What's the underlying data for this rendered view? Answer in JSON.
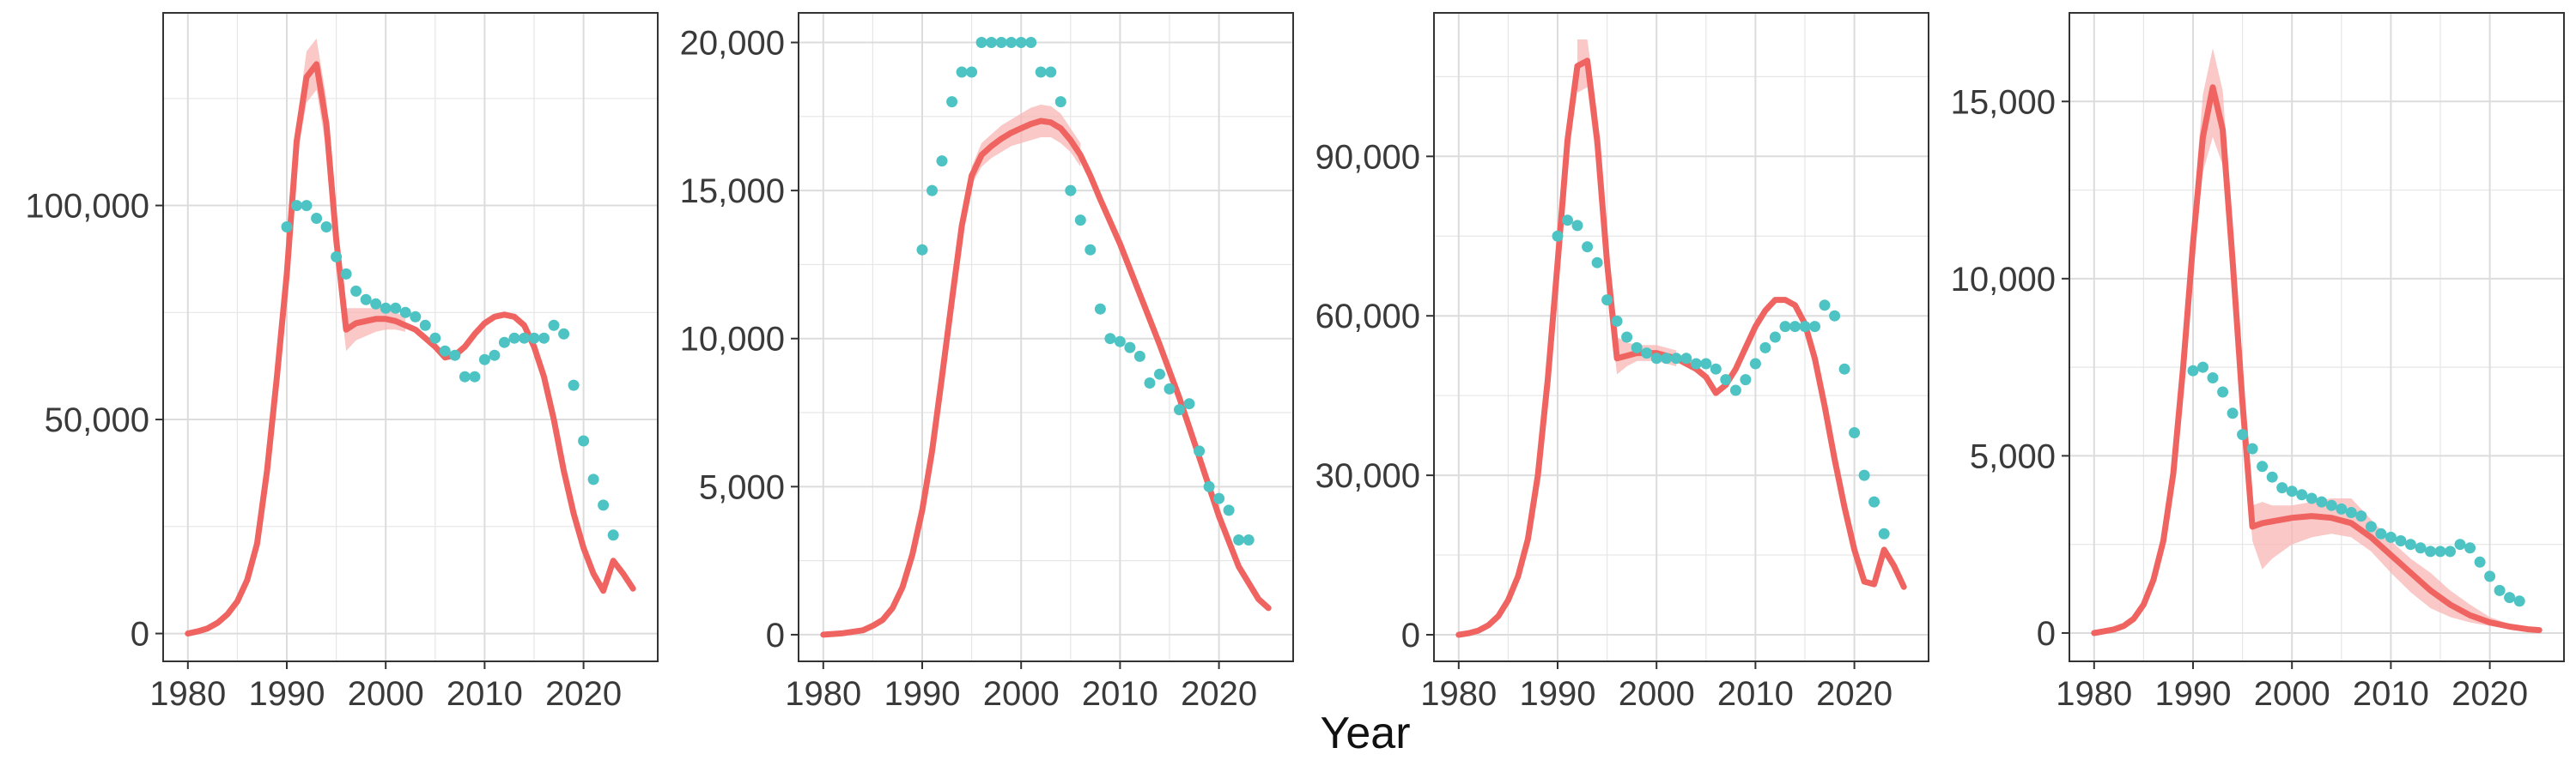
{
  "figure": {
    "xlabel": "Year"
  },
  "colors": {
    "model_line": "#EF6461",
    "model_band": "#F7B5B4",
    "observed_points": "#4EC3C3",
    "grid": "#E6E6E6",
    "panel_border": "#333333"
  },
  "chart_data": [
    {
      "type": "line",
      "title": "",
      "xlim": [
        1977.5,
        2027.5
      ],
      "ylim": [
        -6500,
        145000
      ],
      "x_ticks": [
        1980,
        1990,
        2000,
        2010,
        2020
      ],
      "x_tick_labels": [
        "1980",
        "1990",
        "2000",
        "2010",
        "2020"
      ],
      "y_ticks": [
        0,
        50000,
        100000
      ],
      "y_tick_labels": [
        "0",
        "50,000",
        "100,000"
      ],
      "grid": true,
      "series": [
        {
          "kind": "line",
          "x": [
            1980,
            1981,
            1982,
            1983,
            1984,
            1985,
            1986,
            1987,
            1988,
            1989,
            1990,
            1991,
            1992,
            1993,
            1994,
            1995,
            1996,
            1997,
            1998,
            1999,
            2000,
            2001,
            2002,
            2003,
            2004,
            2005,
            2006,
            2007,
            2008,
            2009,
            2010,
            2011,
            2012,
            2013,
            2014,
            2015,
            2016,
            2017,
            2018,
            2019,
            2020,
            2021,
            2022,
            2023,
            2024,
            2025
          ],
          "y": [
            0,
            500,
            1200,
            2500,
            4500,
            7500,
            12500,
            21000,
            38000,
            60000,
            84000,
            115000,
            130000,
            133000,
            119000,
            92000,
            71000,
            72500,
            73000,
            73500,
            73500,
            73000,
            72000,
            71000,
            69000,
            67000,
            64500,
            65000,
            67000,
            70000,
            72500,
            74000,
            74500,
            74000,
            72000,
            67000,
            60000,
            50000,
            38000,
            28000,
            20000,
            14000,
            10000,
            17000,
            14000,
            10500
          ]
        },
        {
          "kind": "band",
          "x": [
            1991,
            1992,
            1993,
            1994,
            1995,
            1996,
            1997,
            1998,
            1999,
            2000,
            2001,
            2002
          ],
          "lower": [
            111000,
            124000,
            127000,
            113000,
            87000,
            66000,
            68500,
            69500,
            70500,
            71000,
            71000,
            70500
          ],
          "upper": [
            119000,
            136000,
            139000,
            125000,
            97000,
            76000,
            76000,
            76000,
            76000,
            76000,
            75000,
            74000
          ]
        },
        {
          "kind": "points",
          "x": [
            1990,
            1991,
            1992,
            1993,
            1994,
            1995,
            1996,
            1997,
            1998,
            1999,
            2000,
            2001,
            2002,
            2003,
            2004,
            2005,
            2006,
            2007,
            2008,
            2009,
            2010,
            2011,
            2012,
            2013,
            2014,
            2015,
            2016,
            2017,
            2018,
            2019,
            2020,
            2021,
            2022,
            2023
          ],
          "y": [
            95000,
            100000,
            100000,
            97000,
            95000,
            88000,
            84000,
            80000,
            78000,
            77000,
            76000,
            76000,
            75000,
            74000,
            72000,
            69000,
            66000,
            65000,
            60000,
            60000,
            64000,
            65000,
            68000,
            69000,
            69000,
            69000,
            69000,
            72000,
            70000,
            58000,
            45000,
            36000,
            30000,
            23000
          ]
        }
      ]
    },
    {
      "type": "line",
      "title": "",
      "xlim": [
        1977.5,
        2027.5
      ],
      "ylim": [
        -900,
        21000
      ],
      "x_ticks": [
        1980,
        1990,
        2000,
        2010,
        2020
      ],
      "x_tick_labels": [
        "1980",
        "1990",
        "2000",
        "2010",
        "2020"
      ],
      "y_ticks": [
        0,
        5000,
        10000,
        15000,
        20000
      ],
      "y_tick_labels": [
        "0",
        "5,000",
        "10,000",
        "15,000",
        "20,000"
      ],
      "grid": true,
      "series": [
        {
          "kind": "line",
          "x": [
            1980,
            1982,
            1984,
            1985,
            1986,
            1987,
            1988,
            1989,
            1990,
            1991,
            1992,
            1993,
            1994,
            1995,
            1996,
            1997,
            1998,
            1999,
            2000,
            2001,
            2002,
            2003,
            2004,
            2005,
            2006,
            2007,
            2008,
            2010,
            2012,
            2014,
            2016,
            2018,
            2020,
            2022,
            2024,
            2025
          ],
          "y": [
            0,
            50,
            150,
            300,
            500,
            900,
            1600,
            2700,
            4200,
            6200,
            8700,
            11300,
            13800,
            15500,
            16200,
            16500,
            16750,
            16950,
            17100,
            17250,
            17350,
            17300,
            17100,
            16700,
            16200,
            15500,
            14700,
            13200,
            11500,
            9800,
            8000,
            6000,
            4000,
            2300,
            1200,
            900
          ]
        },
        {
          "kind": "band",
          "x": [
            1995,
            1996,
            1997,
            1998,
            1999,
            2000,
            2001,
            2002,
            2003,
            2004,
            2005,
            2006
          ],
          "lower": [
            15200,
            15800,
            16100,
            16300,
            16500,
            16600,
            16700,
            16800,
            16800,
            16600,
            16300,
            15800
          ],
          "upper": [
            15800,
            16600,
            16900,
            17200,
            17400,
            17600,
            17800,
            17900,
            17850,
            17600,
            17100,
            16600
          ]
        },
        {
          "kind": "points",
          "x": [
            1990,
            1991,
            1992,
            1993,
            1994,
            1995,
            1996,
            1997,
            1998,
            1999,
            2000,
            2001,
            2002,
            2003,
            2004,
            2005,
            2006,
            2007,
            2008,
            2009,
            2010,
            2011,
            2012,
            2013,
            2014,
            2015,
            2016,
            2017,
            2018,
            2019,
            2020,
            2021,
            2022,
            2023
          ],
          "y": [
            13000,
            15000,
            16000,
            18000,
            19000,
            19000,
            20000,
            20000,
            20000,
            20000,
            20000,
            20000,
            19000,
            19000,
            18000,
            15000,
            14000,
            13000,
            11000,
            10000,
            9900,
            9700,
            9400,
            8500,
            8800,
            8300,
            7600,
            7800,
            6200,
            5000,
            4600,
            4200,
            3200,
            3200
          ]
        }
      ]
    },
    {
      "type": "line",
      "title": "",
      "xlim": [
        1977.5,
        2027.5
      ],
      "ylim": [
        -5000,
        117000
      ],
      "x_ticks": [
        1980,
        1990,
        2000,
        2010,
        2020
      ],
      "x_tick_labels": [
        "1980",
        "1990",
        "2000",
        "2010",
        "2020"
      ],
      "y_ticks": [
        0,
        30000,
        60000,
        90000
      ],
      "y_tick_labels": [
        "0",
        "30,000",
        "60,000",
        "90,000"
      ],
      "grid": true,
      "series": [
        {
          "kind": "line",
          "x": [
            1980,
            1981,
            1982,
            1983,
            1984,
            1985,
            1986,
            1987,
            1988,
            1989,
            1990,
            1991,
            1992,
            1993,
            1994,
            1995,
            1996,
            1997,
            1998,
            1999,
            2000,
            2001,
            2002,
            2003,
            2004,
            2005,
            2006,
            2007,
            2008,
            2009,
            2010,
            2011,
            2012,
            2013,
            2014,
            2015,
            2016,
            2017,
            2018,
            2019,
            2020,
            2021,
            2022,
            2023,
            2024,
            2025
          ],
          "y": [
            0,
            300,
            800,
            1800,
            3500,
            6500,
            11000,
            18000,
            30000,
            48000,
            70000,
            93000,
            107000,
            108000,
            93000,
            70000,
            52000,
            52500,
            53000,
            53000,
            53000,
            52500,
            52000,
            51000,
            50000,
            48500,
            45500,
            47000,
            50000,
            54000,
            58000,
            61000,
            63000,
            63000,
            62000,
            58500,
            52000,
            43000,
            33000,
            24000,
            16000,
            10000,
            9500,
            16000,
            13000,
            9000
          ]
        },
        {
          "kind": "band",
          "x": [
            1992,
            1993,
            1994,
            1995,
            1996,
            1997,
            1998,
            1999,
            2000,
            2001,
            2002
          ],
          "lower": [
            102000,
            103000,
            88000,
            65000,
            49000,
            50500,
            51500,
            51500,
            51500,
            51000,
            50500
          ],
          "upper": [
            112000,
            112000,
            98000,
            75000,
            56000,
            55000,
            54500,
            54500,
            54500,
            54000,
            53500
          ]
        },
        {
          "kind": "points",
          "x": [
            1990,
            1991,
            1992,
            1993,
            1994,
            1995,
            1996,
            1997,
            1998,
            1999,
            2000,
            2001,
            2002,
            2003,
            2004,
            2005,
            2006,
            2007,
            2008,
            2009,
            2010,
            2011,
            2012,
            2013,
            2014,
            2015,
            2016,
            2017,
            2018,
            2019,
            2020,
            2021,
            2022,
            2023
          ],
          "y": [
            75000,
            78000,
            77000,
            73000,
            70000,
            63000,
            59000,
            56000,
            54000,
            53000,
            52000,
            52000,
            52000,
            52000,
            51000,
            51000,
            50000,
            48000,
            46000,
            48000,
            51000,
            54000,
            56000,
            58000,
            58000,
            58000,
            58000,
            62000,
            60000,
            50000,
            38000,
            30000,
            25000,
            19000
          ]
        }
      ]
    },
    {
      "type": "line",
      "title": "",
      "xlim": [
        1977.5,
        2027.5
      ],
      "ylim": [
        -800,
        17500
      ],
      "x_ticks": [
        1980,
        1990,
        2000,
        2010,
        2020
      ],
      "x_tick_labels": [
        "1980",
        "1990",
        "2000",
        "2010",
        "2020"
      ],
      "y_ticks": [
        0,
        5000,
        10000,
        15000
      ],
      "y_tick_labels": [
        "0",
        "5,000",
        "10,000",
        "15,000"
      ],
      "grid": true,
      "series": [
        {
          "kind": "line",
          "x": [
            1980,
            1981,
            1982,
            1983,
            1984,
            1985,
            1986,
            1987,
            1988,
            1989,
            1990,
            1991,
            1992,
            1993,
            1994,
            1995,
            1996,
            1997,
            1998,
            2000,
            2002,
            2004,
            2006,
            2008,
            2010,
            2012,
            2014,
            2016,
            2018,
            2020,
            2022,
            2024,
            2025
          ],
          "y": [
            0,
            50,
            100,
            200,
            400,
            800,
            1500,
            2600,
            4500,
            7500,
            11000,
            14000,
            15400,
            14200,
            10500,
            6500,
            3000,
            3100,
            3150,
            3250,
            3300,
            3250,
            3100,
            2700,
            2200,
            1700,
            1200,
            800,
            500,
            300,
            180,
            100,
            80
          ]
        },
        {
          "kind": "band",
          "x": [
            1988,
            1990,
            1991,
            1992,
            1993,
            1994,
            1995,
            1996,
            1997,
            1998,
            2000,
            2002,
            2004,
            2006,
            2008,
            2010,
            2012,
            2014,
            2016,
            2018,
            2020,
            2022,
            2024,
            2025
          ],
          "lower": [
            4300,
            10300,
            13000,
            14000,
            13200,
            9800,
            6000,
            2600,
            1800,
            2100,
            2500,
            2700,
            2800,
            2700,
            2300,
            1700,
            1150,
            700,
            450,
            300,
            200,
            120,
            70,
            60
          ],
          "upper": [
            4700,
            11800,
            15200,
            16500,
            15300,
            11300,
            7000,
            3600,
            3700,
            3600,
            3600,
            3700,
            3800,
            3800,
            3200,
            2600,
            2100,
            1700,
            1200,
            800,
            450,
            250,
            130,
            100
          ]
        },
        {
          "kind": "points",
          "x": [
            1990,
            1991,
            1992,
            1993,
            1994,
            1995,
            1996,
            1997,
            1998,
            1999,
            2000,
            2001,
            2002,
            2003,
            2004,
            2005,
            2006,
            2007,
            2008,
            2009,
            2010,
            2011,
            2012,
            2013,
            2014,
            2015,
            2016,
            2017,
            2018,
            2019,
            2020,
            2021,
            2022,
            2023
          ],
          "y": [
            7400,
            7500,
            7200,
            6800,
            6200,
            5600,
            5200,
            4700,
            4400,
            4100,
            4000,
            3900,
            3800,
            3700,
            3600,
            3500,
            3400,
            3300,
            3000,
            2800,
            2700,
            2600,
            2500,
            2400,
            2300,
            2300,
            2300,
            2500,
            2400,
            2000,
            1600,
            1200,
            1000,
            900
          ]
        }
      ]
    }
  ]
}
